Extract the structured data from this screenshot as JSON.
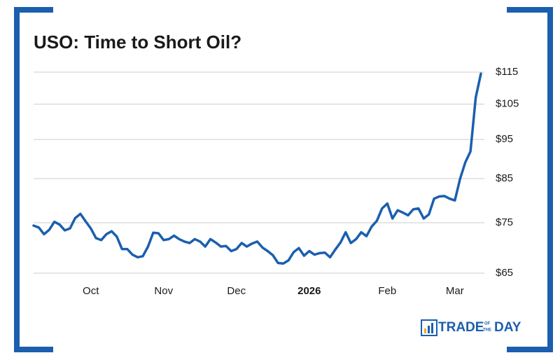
{
  "chart_data": {
    "type": "line",
    "title": "USO: Time to Short Oil?",
    "categories": [
      null,
      null,
      null,
      null,
      null,
      null,
      null,
      null,
      null,
      null,
      null,
      "Oct",
      null,
      null,
      null,
      null,
      null,
      null,
      null,
      null,
      null,
      null,
      null,
      null,
      null,
      "Nov",
      null,
      null,
      null,
      null,
      null,
      null,
      null,
      null,
      null,
      null,
      null,
      null,
      null,
      "Dec",
      null,
      null,
      null,
      null,
      null,
      null,
      null,
      null,
      null,
      null,
      null,
      null,
      null,
      "2026",
      null,
      null,
      null,
      null,
      null,
      null,
      null,
      null,
      null,
      null,
      null,
      null,
      null,
      null,
      "Feb",
      null,
      null,
      null,
      null,
      null,
      null,
      null,
      null,
      null,
      null,
      null,
      null,
      "Mar",
      null,
      null,
      null,
      null,
      null
    ],
    "series": [
      {
        "name": "USO",
        "color": "#1b5fae",
        "values": [
          74.4,
          74.0,
          72.6,
          73.5,
          75.2,
          74.6,
          73.4,
          73.8,
          76.0,
          76.9,
          75.3,
          73.8,
          71.8,
          71.4,
          72.6,
          73.2,
          72.1,
          69.6,
          69.6,
          68.5,
          68.0,
          68.2,
          70.1,
          72.9,
          72.8,
          71.4,
          71.6,
          72.3,
          71.6,
          71.1,
          70.8,
          71.6,
          71.1,
          70.1,
          71.6,
          70.9,
          70.1,
          70.2,
          69.2,
          69.6,
          70.8,
          70.1,
          70.7,
          71.1,
          69.9,
          69.2,
          68.4,
          66.9,
          66.8,
          67.4,
          69.0,
          69.8,
          68.3,
          69.2,
          68.5,
          68.8,
          68.9,
          68.0,
          69.5,
          70.9,
          73.0,
          70.8,
          71.6,
          73.0,
          72.2,
          74.2,
          75.4,
          78.1,
          79.2,
          75.9,
          77.7,
          77.2,
          76.6,
          77.9,
          78.1,
          75.9,
          76.8,
          80.3,
          80.8,
          80.9,
          80.3,
          79.9,
          85.0,
          89.0,
          91.8,
          107.0,
          114.5
        ]
      }
    ],
    "ylim": [
      65,
      115
    ],
    "yticks": [
      {
        "value": 65,
        "label": "$65"
      },
      {
        "value": 75,
        "label": "$75"
      },
      {
        "value": 85,
        "label": "$85"
      },
      {
        "value": 95,
        "label": "$95"
      },
      {
        "value": 105,
        "label": "$105"
      },
      {
        "value": 115,
        "label": "$115"
      }
    ],
    "log_scale": true,
    "grid": true
  },
  "logo": {
    "main": "TRADE",
    "of": "OF",
    "the": "THE",
    "day": "DAY"
  }
}
